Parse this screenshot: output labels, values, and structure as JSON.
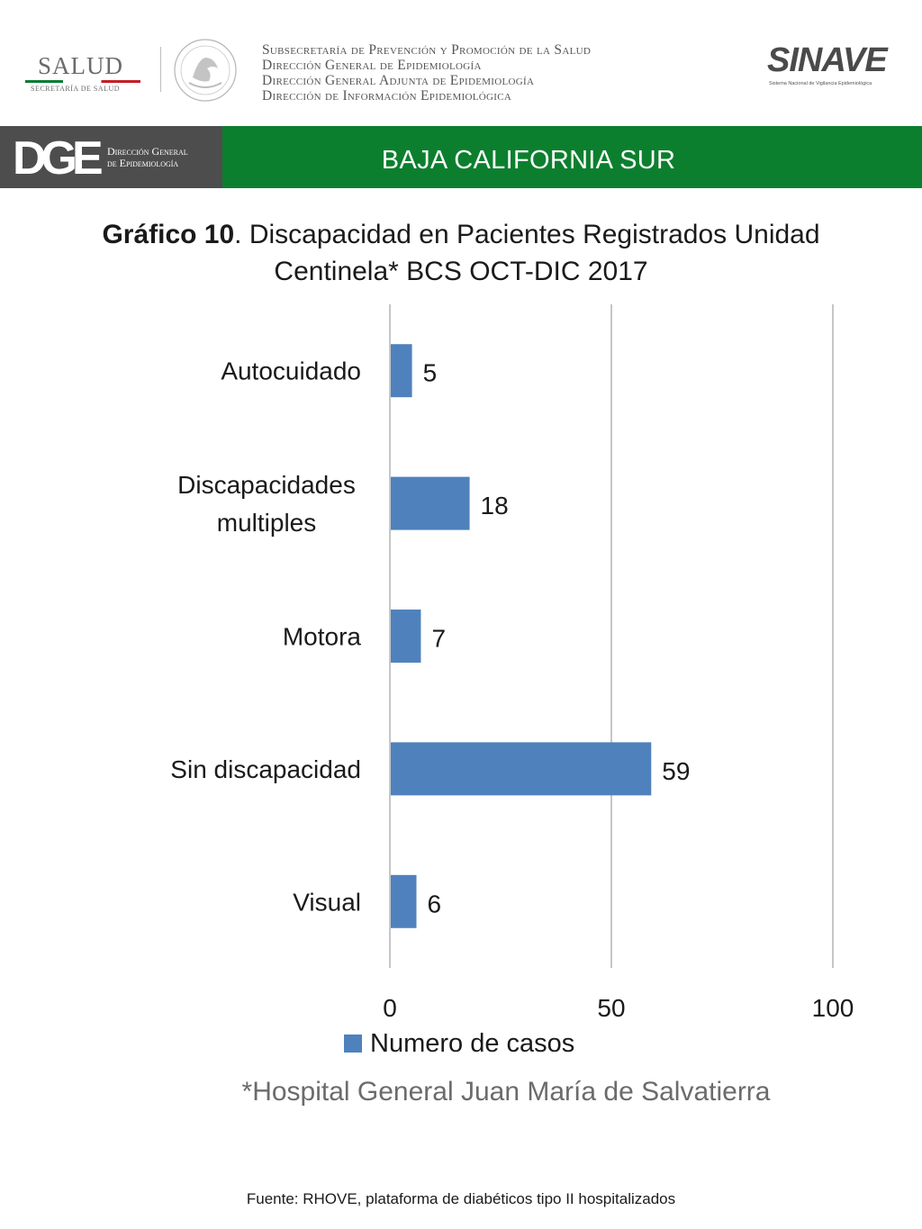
{
  "header": {
    "salud_word": "SALUD",
    "salud_sub": "SECRETARÍA DE SALUD",
    "org_lines": [
      "Subsecretaría de Prevención y Promoción de la Salud",
      "Dirección General de Epidemiología",
      "Dirección General Adjunta de Epidemiología",
      "Dirección de Información Epidemiológica"
    ],
    "sinave_word": "SINAVE",
    "sinave_sub": "Sistema Nacional de Vigilancia Epidemiológica"
  },
  "banner": {
    "dge_mark": "DGE",
    "dge_text_1": "Dirección General",
    "dge_text_2": "de Epidemiología",
    "title": "BAJA CALIFORNIA SUR"
  },
  "chart_title_bold": "Gráfico 10",
  "chart_title_rest": ". Discapacidad en Pacientes Registrados  Unidad Centinela* BCS OCT-DIC 2017",
  "chart_data": {
    "type": "bar",
    "orientation": "horizontal",
    "title": "Gráfico 10. Discapacidad en Pacientes Registrados  Unidad Centinela* BCS OCT-DIC 2017",
    "categories": [
      "Autocuidado",
      "Discapacidades multiples",
      "Motora",
      "Sin discapacidad",
      "Visual"
    ],
    "series": [
      {
        "name": "Numero de casos",
        "values": [
          5,
          18,
          7,
          59,
          6
        ]
      }
    ],
    "xlim": [
      0,
      100
    ],
    "xticks": [
      0,
      50,
      100
    ],
    "xlabel": "",
    "ylabel": "",
    "grid": "vertical",
    "legend": "bottom",
    "bar_color": "#4f81bd"
  },
  "note": "*Hospital General Juan María de Salvatierra",
  "source": "Fuente: RHOVE, plataforma de diabéticos tipo II hospitalizados"
}
